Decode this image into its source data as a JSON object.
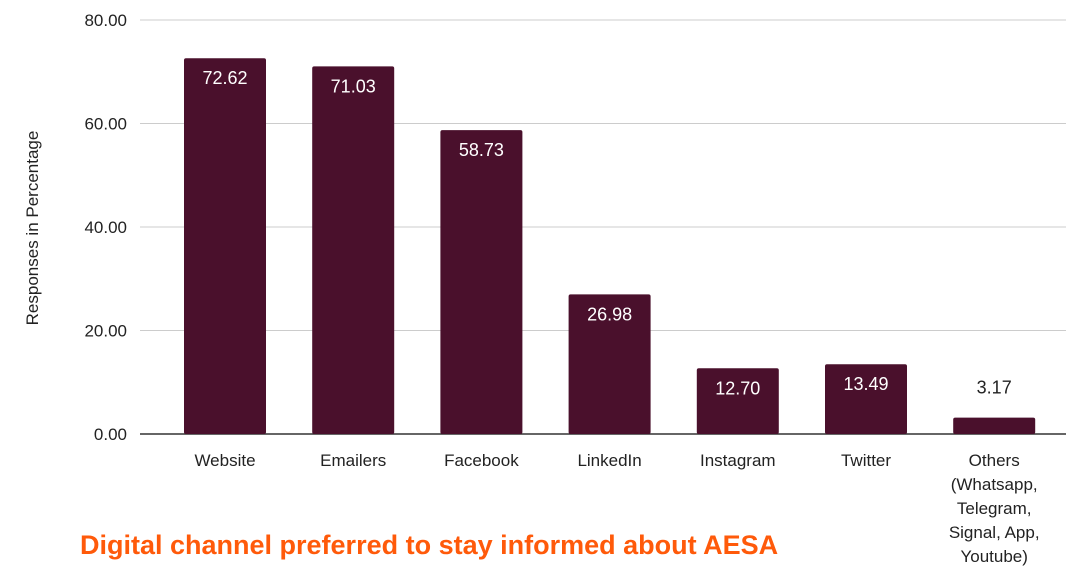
{
  "chart_data": {
    "type": "bar",
    "title": "Digital channel preferred to stay informed about AESA",
    "xlabel": "",
    "ylabel": "Responses in Percentage",
    "categories": [
      [
        "Website"
      ],
      [
        "Emailers"
      ],
      [
        "Facebook"
      ],
      [
        "LinkedIn"
      ],
      [
        "Instagram"
      ],
      [
        "Twitter"
      ],
      [
        "Others",
        "(Whatsapp,",
        "Telegram,",
        "Signal, App,",
        "Youtube)"
      ]
    ],
    "values": [
      72.62,
      71.03,
      58.73,
      26.98,
      12.7,
      13.49,
      3.17
    ],
    "value_labels": [
      "72.62",
      "71.03",
      "58.73",
      "26.98",
      "12.70",
      "13.49",
      "3.17"
    ],
    "ylim": [
      0,
      80
    ],
    "y_ticks": [
      "0.00",
      "20.00",
      "40.00",
      "60.00",
      "80.00"
    ],
    "grid": true,
    "legend": "none",
    "colors": {
      "bar": "#4a102c",
      "bar_label_inside": "#ffffff",
      "bar_label_outside": "#222222",
      "grid": "#cccccc",
      "axis": "#333333",
      "title": "#ff5a0a"
    }
  }
}
